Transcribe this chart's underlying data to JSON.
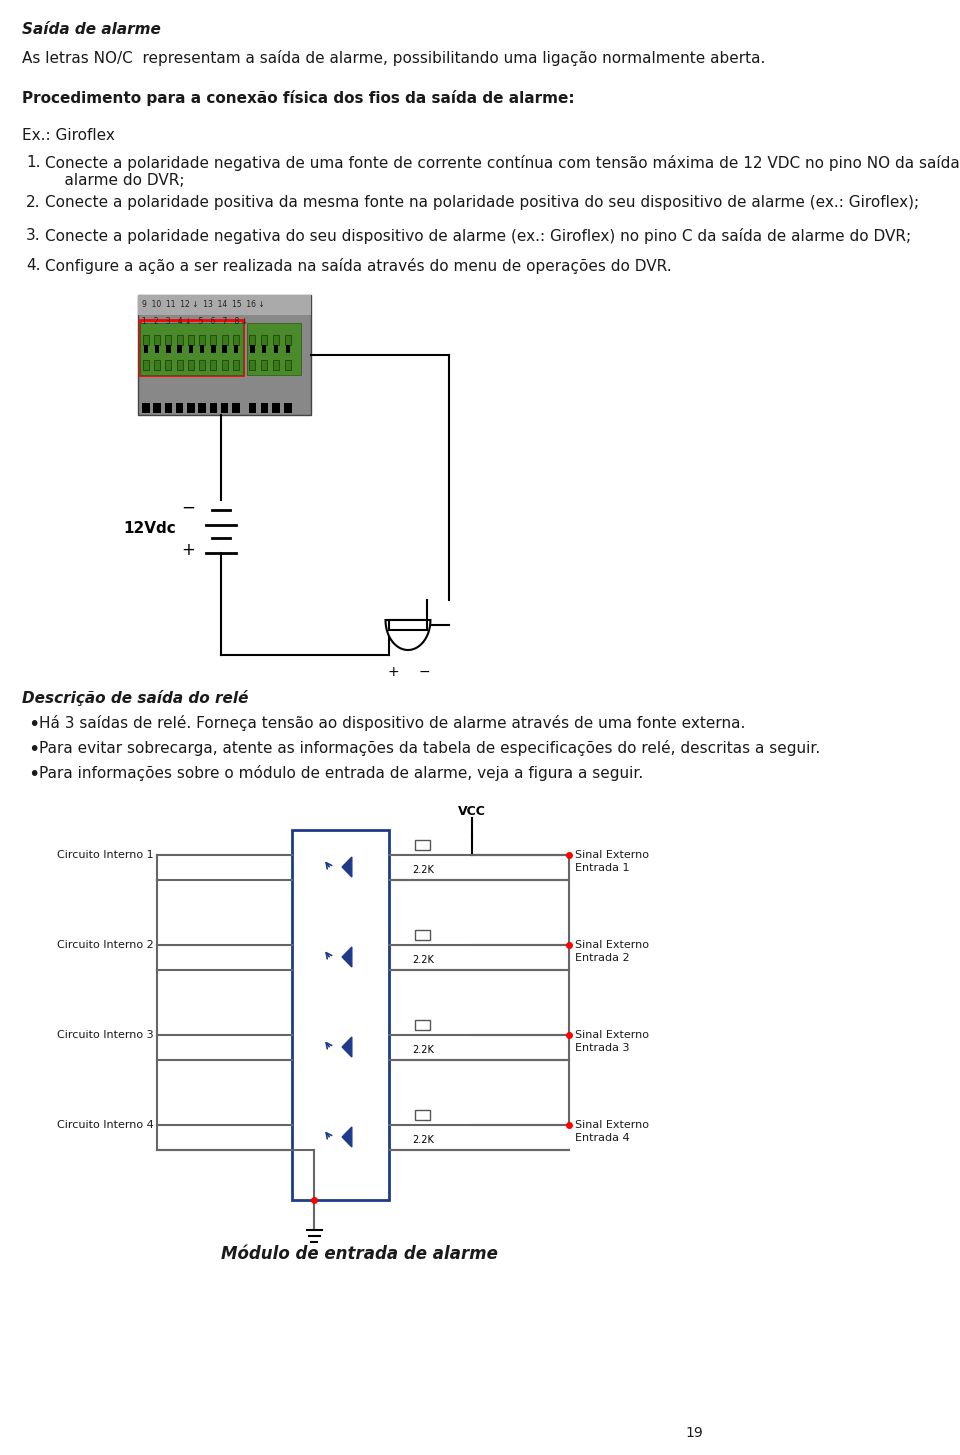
{
  "bg_color": "#ffffff",
  "page_number": "19",
  "title_italic": "Saída de alarme",
  "para1": "As letras NO/C  representam a saída de alarme, possibilitando uma ligação normalmente aberta.",
  "bold_heading": "Procedimento para a conexão física dos fios da saída de alarme:",
  "ex_label": "Ex.: Giroflex",
  "items": [
    "Conecte a polaridade negativa de uma fonte de corrente contínua com tensão máxima de 12 VDC no pino NO da saída de alarme do DVR;",
    "Conecte a polaridade positiva da mesma fonte na polaridade positiva do seu dispositivo de alarme (ex.: Giroflex);",
    "Conecte a polaridade negativa do seu dispositivo de alarme (ex.: Giroflex) no pino C da saída de alarme do DVR;",
    "Configure a ação a ser realizada na saída através do menu de operações do DVR."
  ],
  "desc_title_italic": "Descrição de saída do relé",
  "bullets": [
    "Há 3 saídas de relé. Forneça tensão ao dispositivo de alarme através de uma fonte externa.",
    "Para evitar sobrecarga, atente as informações da tabela de especificações do relé, descritas a seguir.",
    "Para informações sobre o módulo de entrada de alarme, veja a figura a seguir."
  ],
  "circuit_labels_left": [
    "Circuito Interno 1",
    "Circuito Interno 2",
    "Circuito Interno 3",
    "Circuito Interno 4"
  ],
  "circuit_labels_right": [
    [
      "Sinal Externo",
      "Entrada 1"
    ],
    [
      "Sinal Externo",
      "Entrada 2"
    ],
    [
      "Sinal Externo",
      "Entrada 3"
    ],
    [
      "Sinal Externo",
      "Entrada 4"
    ]
  ],
  "resistor_label": "2.2K",
  "vcc_label": "VCC",
  "caption": "Módulo de entrada de alarme",
  "font_size_body": 11,
  "font_size_title": 11,
  "text_color": "#1a1a1a",
  "blue_color": "#1e3a8a",
  "line_color": "#555555"
}
